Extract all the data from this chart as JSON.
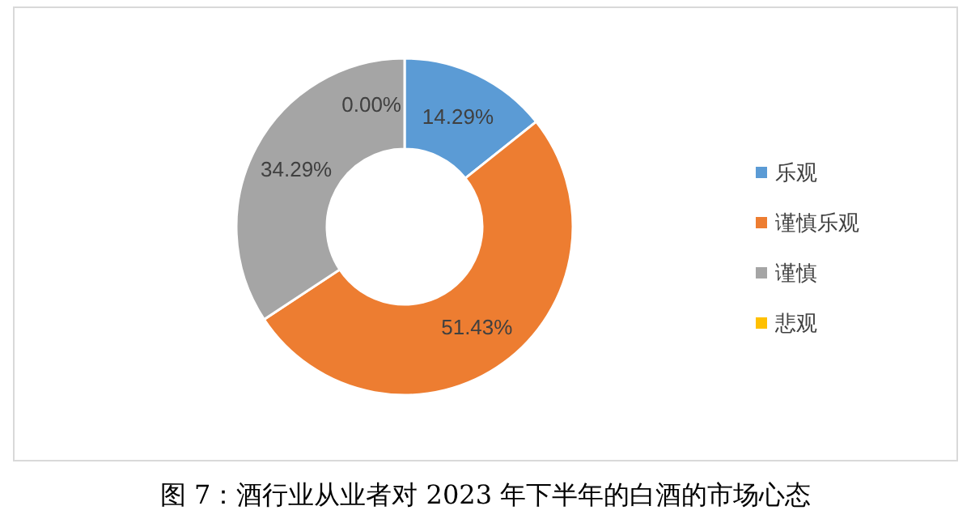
{
  "chart_data": {
    "type": "donut",
    "title": "图 7：酒行业从业者对 2023 年下半年的白酒的市场心态",
    "categories": [
      "乐观",
      "谨慎乐观",
      "谨慎",
      "悲观"
    ],
    "values": [
      14.29,
      51.43,
      34.29,
      0.0
    ],
    "colors": [
      "#5b9bd5",
      "#ed7d31",
      "#a5a5a5",
      "#ffc000"
    ],
    "value_labels": [
      "14.29%",
      "51.43%",
      "34.29%",
      "0.00%"
    ],
    "legend": "right"
  }
}
